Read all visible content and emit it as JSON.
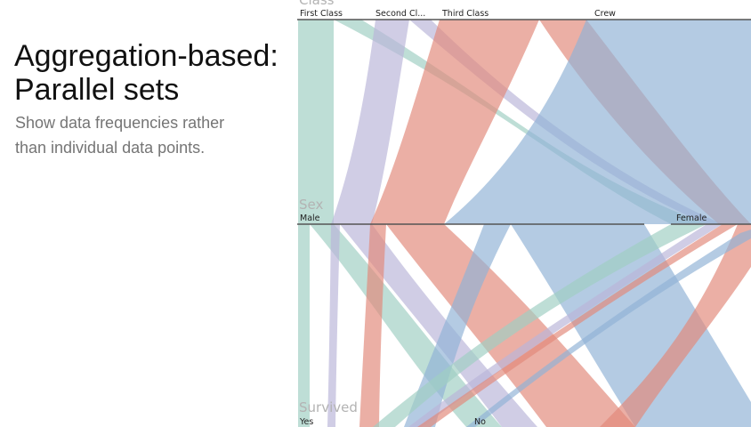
{
  "title": {
    "line1": "Aggregation-based:",
    "line2": "Parallel sets"
  },
  "subtitle": {
    "line1": "Show data frequencies rather",
    "line2": "than individual data points."
  },
  "parallel_sets": {
    "axes": [
      {
        "name": "Class",
        "categories": [
          "First Class",
          "Second Cl...",
          "Third Class",
          "Crew"
        ]
      },
      {
        "name": "Sex",
        "categories": [
          "Male",
          "Female"
        ]
      },
      {
        "name": "Survived",
        "categories": [
          "Yes",
          "No"
        ]
      }
    ],
    "colors": {
      "First Class": "#9fcfc2",
      "Second Cl...": "#b9b6d9",
      "Third Class": "#e1897a",
      "Crew": "#90b3d6"
    }
  }
}
